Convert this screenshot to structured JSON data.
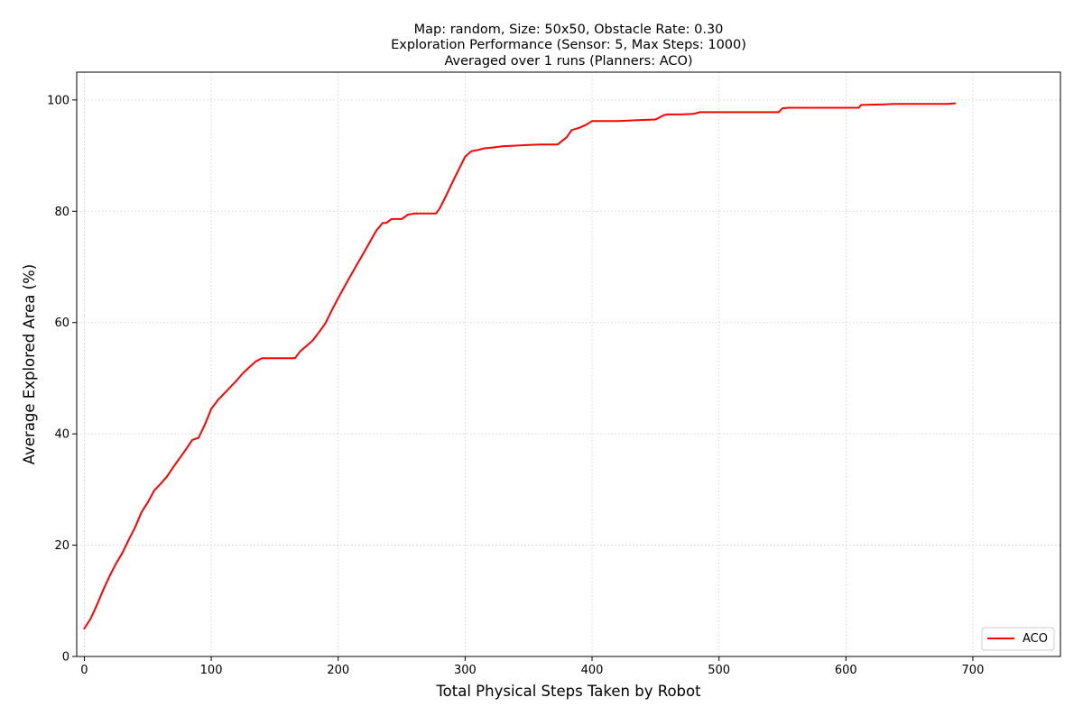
{
  "chart_data": {
    "type": "line",
    "title_lines": [
      "Map: random, Size: 50x50, Obstacle Rate: 0.30",
      "Exploration Performance (Sensor: 5, Max Steps: 1000)",
      "Averaged over 1 runs (Planners: ACO)"
    ],
    "xlabel": "Total Physical Steps Taken by Robot",
    "ylabel": "Average Explored Area (%)",
    "xlim": [
      -6,
      769
    ],
    "ylim": [
      0,
      105
    ],
    "xticks": [
      0,
      100,
      200,
      300,
      400,
      500,
      600,
      700
    ],
    "yticks": [
      0,
      20,
      40,
      60,
      80,
      100
    ],
    "grid": true,
    "grid_style": "dotted",
    "legend_position": "lower-right",
    "series": [
      {
        "name": "ACO",
        "color": "#ff0000",
        "x": [
          0,
          5,
          10,
          15,
          20,
          25,
          30,
          35,
          40,
          45,
          50,
          55,
          60,
          65,
          70,
          75,
          80,
          85,
          90,
          95,
          100,
          105,
          110,
          115,
          120,
          125,
          130,
          135,
          140,
          150,
          160,
          166,
          170,
          175,
          180,
          185,
          190,
          195,
          200,
          205,
          210,
          215,
          220,
          225,
          230,
          235,
          238,
          242,
          245,
          250,
          255,
          260,
          270,
          277,
          280,
          285,
          290,
          295,
          300,
          305,
          310,
          315,
          320,
          330,
          340,
          350,
          360,
          373,
          380,
          384,
          390,
          395,
          400,
          410,
          420,
          438,
          450,
          457,
          460,
          470,
          480,
          485,
          500,
          520,
          547,
          550,
          555,
          570,
          590,
          610,
          612,
          630,
          637,
          660,
          680,
          686
        ],
        "y": [
          5.0,
          6.8,
          9.3,
          12.0,
          14.5,
          16.7,
          18.6,
          21.0,
          23.2,
          25.9,
          27.7,
          29.8,
          31.0,
          32.3,
          34.0,
          35.6,
          37.2,
          38.9,
          39.3,
          41.7,
          44.5,
          46.0,
          47.2,
          48.4,
          49.6,
          50.9,
          52.0,
          53.0,
          53.6,
          53.6,
          53.6,
          53.6,
          54.8,
          55.8,
          56.8,
          58.3,
          59.9,
          62.2,
          64.4,
          66.5,
          68.5,
          70.5,
          72.5,
          74.5,
          76.5,
          77.9,
          77.9,
          78.6,
          78.6,
          78.6,
          79.4,
          79.6,
          79.6,
          79.6,
          80.5,
          82.8,
          85.2,
          87.5,
          89.8,
          90.8,
          91.0,
          91.3,
          91.4,
          91.7,
          91.8,
          91.9,
          92.0,
          92.0,
          93.3,
          94.6,
          95.0,
          95.5,
          96.2,
          96.2,
          96.2,
          96.4,
          96.5,
          97.3,
          97.4,
          97.4,
          97.5,
          97.8,
          97.8,
          97.8,
          97.8,
          98.5,
          98.6,
          98.6,
          98.6,
          98.6,
          99.1,
          99.2,
          99.3,
          99.3,
          99.3,
          99.4
        ]
      }
    ]
  }
}
